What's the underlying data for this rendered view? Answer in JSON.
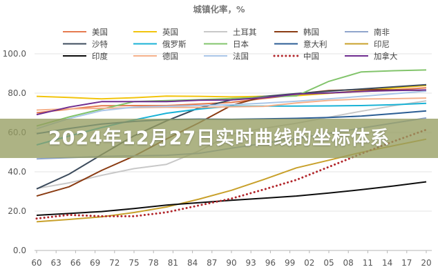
{
  "banner": {
    "text": "2024年12月27日实时曲线的坐标体系"
  },
  "chart_data": {
    "type": "line",
    "title": "城镇化率，%",
    "xlim": [
      1960,
      2020
    ],
    "ylim": [
      0,
      100
    ],
    "xticks": [
      1960,
      1963,
      1966,
      1969,
      1972,
      1975,
      1978,
      1981,
      1984,
      1987,
      1990,
      1993,
      1996,
      1999,
      2002,
      2005,
      2008,
      2011,
      2014,
      2017,
      2020
    ],
    "xtick_labels": [
      "60",
      "63",
      "66",
      "69",
      "72",
      "75",
      "78",
      "81",
      "84",
      "87",
      "90",
      "93",
      "96",
      "99",
      "02",
      "05",
      "08",
      "11",
      "14",
      "17",
      "20"
    ],
    "yticks": [
      0,
      20,
      40,
      60,
      80,
      100
    ],
    "ytick_labels": [
      "0.0",
      "20.0",
      "40.0",
      "60.0",
      "80.0",
      "100.0"
    ],
    "grid": "horizontal",
    "legend_position": "top",
    "x": [
      1960,
      1965,
      1970,
      1975,
      1980,
      1985,
      1990,
      1995,
      2000,
      2005,
      2010,
      2015,
      2020
    ],
    "series": [
      {
        "name": "美国",
        "color": "#e57a4f",
        "style": "solid",
        "values": [
          70.0,
          71.9,
          73.6,
          73.7,
          73.7,
          74.5,
          75.3,
          77.3,
          79.1,
          80.0,
          80.8,
          81.7,
          82.7
        ]
      },
      {
        "name": "英国",
        "color": "#f2c40c",
        "style": "solid",
        "values": [
          78.4,
          77.8,
          77.1,
          77.7,
          78.5,
          78.4,
          78.1,
          78.4,
          78.7,
          79.9,
          81.3,
          82.6,
          83.9
        ]
      },
      {
        "name": "土耳其",
        "color": "#c8c8c8",
        "style": "solid",
        "values": [
          31.5,
          34.4,
          38.2,
          41.6,
          43.8,
          50.6,
          59.2,
          62.1,
          64.7,
          67.8,
          70.8,
          73.6,
          76.1
        ]
      },
      {
        "name": "韩国",
        "color": "#8a3b12",
        "style": "solid",
        "values": [
          27.7,
          32.4,
          40.7,
          48.0,
          56.7,
          64.9,
          73.8,
          78.2,
          79.6,
          81.3,
          81.9,
          81.6,
          81.4
        ]
      },
      {
        "name": "南非",
        "color": "#8fa5cc",
        "style": "solid",
        "values": [
          46.6,
          47.2,
          47.8,
          48.1,
          48.4,
          49.4,
          52.0,
          54.5,
          56.9,
          59.5,
          62.2,
          64.8,
          67.4
        ]
      },
      {
        "name": "沙特",
        "color": "#3c4b5c",
        "style": "solid",
        "values": [
          31.3,
          38.8,
          48.7,
          58.3,
          65.9,
          72.5,
          76.6,
          78.3,
          79.8,
          81.0,
          82.1,
          83.2,
          84.3
        ]
      },
      {
        "name": "俄罗斯",
        "color": "#19b2d6",
        "style": "solid",
        "values": [
          53.7,
          58.2,
          62.5,
          66.4,
          69.8,
          71.9,
          73.4,
          73.4,
          73.4,
          73.5,
          73.7,
          74.1,
          74.8
        ]
      },
      {
        "name": "日本",
        "color": "#82c46b",
        "style": "solid",
        "values": [
          63.3,
          67.9,
          71.9,
          75.7,
          76.2,
          76.7,
          77.3,
          78.0,
          78.6,
          86.0,
          90.8,
          91.4,
          91.8
        ]
      },
      {
        "name": "意大利",
        "color": "#2b5d94",
        "style": "solid",
        "values": [
          59.4,
          62.0,
          64.3,
          65.6,
          66.6,
          66.8,
          66.7,
          66.9,
          67.2,
          67.6,
          68.3,
          69.6,
          71.0
        ]
      },
      {
        "name": "印尼",
        "color": "#c8a02a",
        "style": "solid",
        "values": [
          14.6,
          15.8,
          17.1,
          19.3,
          22.1,
          26.1,
          30.6,
          36.1,
          42.0,
          45.9,
          49.9,
          53.3,
          56.6
        ]
      },
      {
        "name": "印度",
        "color": "#0b0b0b",
        "style": "solid",
        "values": [
          17.9,
          18.8,
          19.8,
          21.3,
          23.1,
          24.3,
          25.5,
          26.6,
          27.7,
          29.2,
          30.9,
          32.8,
          34.9
        ]
      },
      {
        "name": "德国",
        "color": "#f5b08a",
        "style": "solid",
        "values": [
          71.4,
          72.0,
          72.3,
          72.6,
          72.8,
          72.7,
          73.1,
          73.3,
          75.0,
          76.3,
          77.0,
          77.2,
          77.5
        ]
      },
      {
        "name": "法国",
        "color": "#a9c6e8",
        "style": "solid",
        "values": [
          61.9,
          67.1,
          71.1,
          72.9,
          73.3,
          73.7,
          74.1,
          74.9,
          75.9,
          77.1,
          78.4,
          79.7,
          81.0
        ]
      },
      {
        "name": "中国",
        "color": "#b2262b",
        "style": "dotted",
        "values": [
          16.2,
          18.1,
          17.4,
          17.4,
          19.4,
          22.9,
          26.4,
          31.0,
          35.9,
          42.5,
          49.2,
          55.5,
          61.4
        ]
      },
      {
        "name": "加拿大",
        "color": "#6e2c8f",
        "style": "solid",
        "values": [
          69.1,
          72.9,
          75.7,
          75.7,
          75.7,
          76.4,
          76.6,
          77.7,
          79.5,
          80.1,
          80.9,
          81.3,
          81.6
        ]
      }
    ]
  }
}
